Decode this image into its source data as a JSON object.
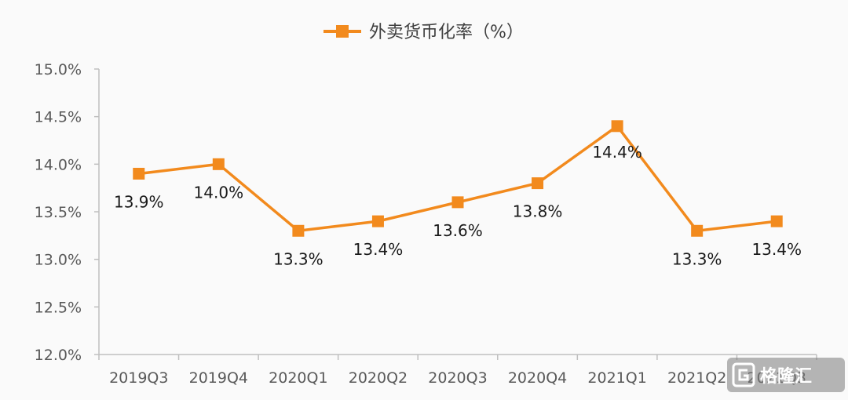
{
  "chart_data": {
    "type": "line",
    "categories": [
      "2019Q3",
      "2019Q4",
      "2020Q1",
      "2020Q2",
      "2020Q3",
      "2020Q4",
      "2021Q1",
      "2021Q2",
      "2021Q3"
    ],
    "series": [
      {
        "name": "外卖货币化率（%）",
        "values": [
          13.9,
          14.0,
          13.3,
          13.4,
          13.6,
          13.8,
          14.4,
          13.3,
          13.4
        ],
        "data_labels": [
          "13.9%",
          "14.0%",
          "13.3%",
          "13.4%",
          "13.6%",
          "13.8%",
          "14.4%",
          "13.3%",
          "13.4%"
        ],
        "color": "#f28a1d"
      }
    ],
    "y_ticks": [
      "12.0%",
      "12.5%",
      "13.0%",
      "13.5%",
      "14.0%",
      "14.5%",
      "15.0%"
    ],
    "ylim": [
      12.0,
      15.0
    ],
    "legend_position": "top-center",
    "grid": false
  },
  "colors": {
    "line": "#f28a1d",
    "axis": "#bfbfbf",
    "tick_text": "#595959",
    "label_text": "#1a1a1a"
  },
  "watermark": {
    "text": "格隆汇",
    "icon": "glh-logo-icon"
  }
}
